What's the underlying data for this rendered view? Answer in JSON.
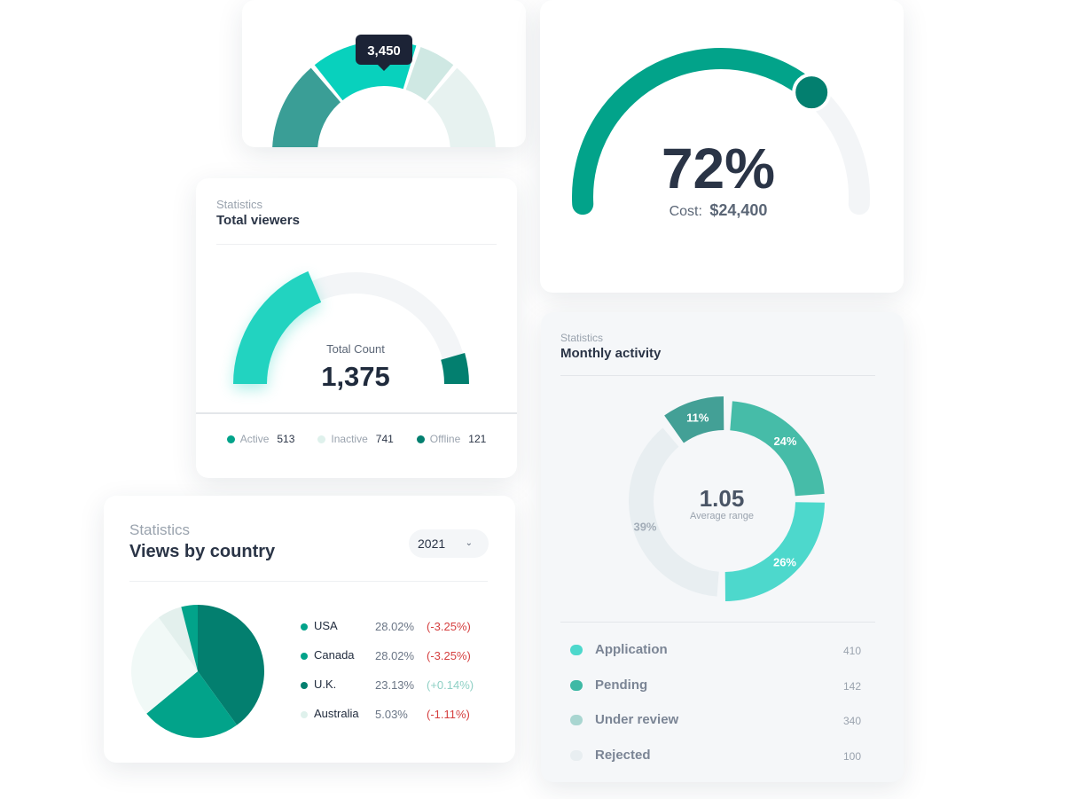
{
  "colors": {
    "teal_dark": "#037f6f",
    "teal": "#02a38a",
    "teal_mid": "#3fb9a5",
    "teal_light": "#22d3c0",
    "aqua": "#4dd8cc",
    "mint_pale": "#dff1ec",
    "gray_track": "#f3f5f7",
    "red": "#d53f3f",
    "green_text": "#8fd0c5"
  },
  "top_donut": {
    "tooltip": "3,450"
  },
  "gauge": {
    "value_label": "72%",
    "cost_label": "Cost:",
    "cost_value": "$24,400"
  },
  "total_viewers": {
    "subtitle": "Statistics",
    "title": "Total viewers",
    "center_label": "Total Count",
    "center_value": "1,375",
    "legend": [
      {
        "label": "Active",
        "value": "513",
        "color": "#02a38a"
      },
      {
        "label": "Inactive",
        "value": "741",
        "color": "#dff1ec"
      },
      {
        "label": "Offline",
        "value": "121",
        "color": "#037f6f"
      }
    ]
  },
  "views_by_country": {
    "subtitle": "Statistics",
    "title": "Views by country",
    "year": "2021",
    "rows": [
      {
        "country": "USA",
        "percent": "28.02%",
        "change": "(-3.25%)",
        "color": "#02a38a",
        "trend": "down"
      },
      {
        "country": "Canada",
        "percent": "28.02%",
        "change": "(-3.25%)",
        "color": "#02a38a",
        "trend": "down"
      },
      {
        "country": "U.K.",
        "percent": "23.13%",
        "change": "(+0.14%)",
        "color": "#037f6f",
        "trend": "up"
      },
      {
        "country": "Australia",
        "percent": "5.03%",
        "change": "(-1.11%)",
        "color": "#dff1ec",
        "trend": "down"
      }
    ]
  },
  "monthly_activity": {
    "subtitle": "Statistics",
    "title": "Monthly activity",
    "center_value": "1.05",
    "center_label": "Average range",
    "statuses": [
      {
        "label": "Application",
        "count": "410",
        "color": "#4dd8cc"
      },
      {
        "label": "Pending",
        "count": "142",
        "color": "#3fb9a5"
      },
      {
        "label": "Under review",
        "count": "340",
        "color": "#a9d6d1"
      },
      {
        "label": "Rejected",
        "count": "100",
        "color": "#e8eef1"
      }
    ]
  },
  "chart_data": [
    {
      "type": "pie",
      "chart": "top-donut",
      "values": [
        28,
        32,
        12,
        28
      ],
      "colors": [
        "#3a9e96",
        "#08d1bd",
        "#cfe8e3",
        "#e7f2f0"
      ],
      "tooltip": "3,450"
    },
    {
      "type": "pie",
      "chart": "gauge",
      "values": [
        72,
        28
      ],
      "value_label": "72%"
    },
    {
      "type": "pie",
      "chart": "total-viewers",
      "categories": [
        "Active",
        "Inactive",
        "Offline"
      ],
      "values": [
        513,
        741,
        121
      ],
      "total": "1,375"
    },
    {
      "type": "pie",
      "chart": "views-by-country",
      "values": [
        40,
        24,
        26,
        6,
        4
      ],
      "colors": [
        "#037f6f",
        "#02a38a",
        "#f1f9f7",
        "#e3f0ed",
        "#02a38a"
      ]
    },
    {
      "type": "pie",
      "chart": "monthly-activity",
      "values": [
        24,
        26,
        39,
        11
      ],
      "labels": [
        "24%",
        "26%",
        "39%",
        "11%"
      ],
      "colors": [
        "#46bca8",
        "#4dd8cc",
        "#e8eef1",
        "#43a096"
      ],
      "center": "1.05"
    }
  ]
}
